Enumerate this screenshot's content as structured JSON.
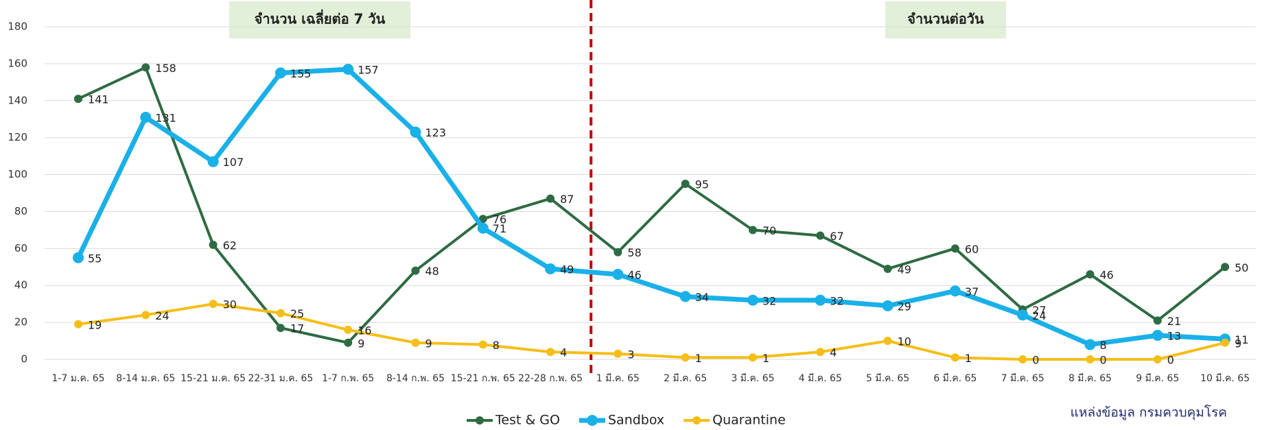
{
  "chart_data": {
    "type": "line",
    "categories": [
      "1-7 ม.ค. 65",
      "8-14 ม.ค. 65",
      "15-21 ม.ค. 65",
      "22-31 ม.ค. 65",
      "1-7 ก.พ. 65",
      "8-14 ก.พ. 65",
      "15-21 ก.พ. 65",
      "22-28 ก.พ. 65",
      "1 มี.ค. 65",
      "2 มี.ค. 65",
      "3 มี.ค. 65",
      "4 มี.ค. 65",
      "5 มี.ค. 65",
      "6 มี.ค. 65",
      "7 มี.ค. 65",
      "8 มี.ค. 65",
      "9 มี.ค. 65",
      "10 มี.ค. 65"
    ],
    "series": [
      {
        "name": "Test & GO",
        "color": "#2e6b42",
        "values": [
          141,
          158,
          62,
          17,
          9,
          48,
          76,
          87,
          58,
          95,
          70,
          67,
          49,
          60,
          27,
          46,
          21,
          50
        ]
      },
      {
        "name": "Sandbox",
        "color": "#1ab0e8",
        "values": [
          55,
          131,
          107,
          155,
          157,
          123,
          71,
          49,
          46,
          34,
          32,
          32,
          29,
          37,
          24,
          8,
          13,
          11
        ]
      },
      {
        "name": "Quarantine",
        "color": "#f5be18",
        "values": [
          19,
          24,
          30,
          25,
          16,
          9,
          8,
          4,
          3,
          1,
          1,
          4,
          10,
          1,
          0,
          0,
          0,
          9
        ]
      }
    ],
    "ylim": [
      0,
      180
    ],
    "yticks": [
      0,
      20,
      40,
      60,
      80,
      100,
      120,
      140,
      160,
      180
    ],
    "grid": true,
    "legend": "bottom",
    "annotations": [
      "จำนวน เฉลี่ยต่อ 7 วัน",
      "จำนวนต่อวัน"
    ],
    "source": "แหล่งข้อมูล กรมควบคุมโรค"
  }
}
